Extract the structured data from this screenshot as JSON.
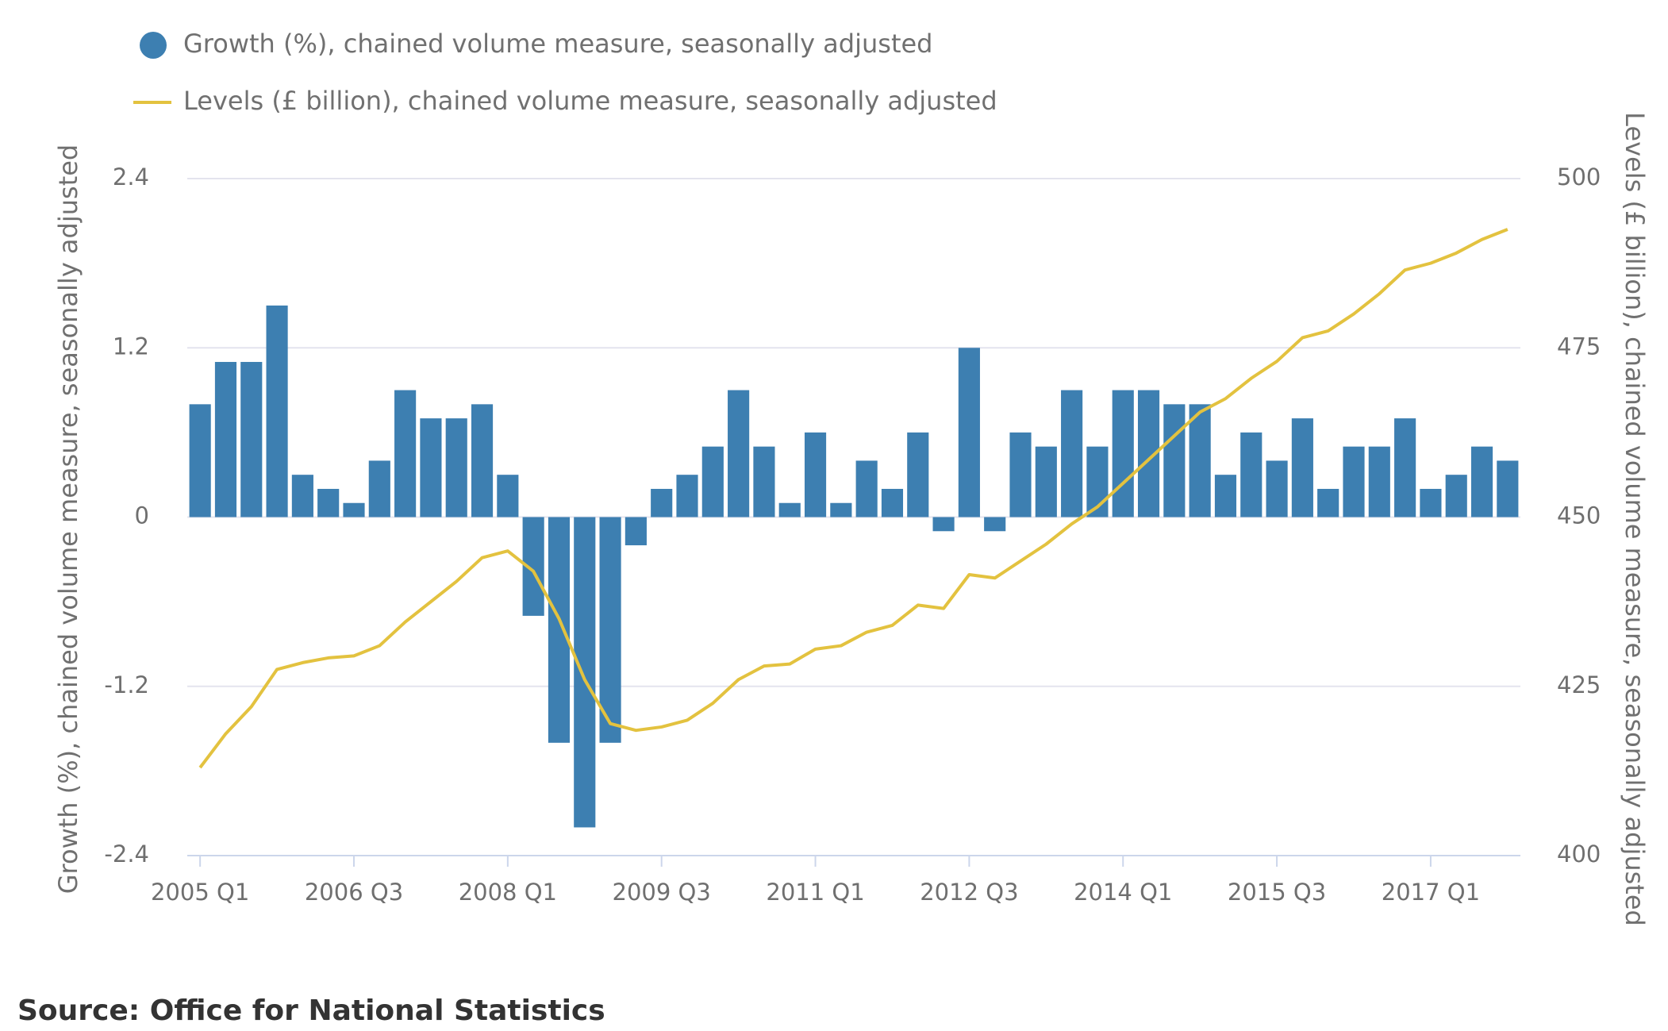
{
  "chart_data": {
    "type": "combo",
    "categories": [
      "2005 Q1",
      null,
      null,
      null,
      null,
      null,
      "2006 Q3",
      null,
      null,
      null,
      null,
      null,
      "2008 Q1",
      null,
      null,
      null,
      null,
      null,
      "2009 Q3",
      null,
      null,
      null,
      null,
      null,
      "2011 Q1",
      null,
      null,
      null,
      null,
      null,
      "2012 Q3",
      null,
      null,
      null,
      null,
      null,
      "2014 Q1",
      null,
      null,
      null,
      null,
      null,
      "2015 Q3",
      null,
      null,
      null,
      null,
      null,
      "2017 Q1",
      null,
      null,
      null
    ],
    "series": [
      {
        "name": "Growth (%), chained volume measure, seasonally adjusted",
        "type": "bar",
        "color": "#3d7fb1",
        "values": [
          0.8,
          1.1,
          1.1,
          1.5,
          0.3,
          0.2,
          0.1,
          0.4,
          0.9,
          0.7,
          0.7,
          0.8,
          0.3,
          -0.7,
          -1.6,
          -2.2,
          -1.6,
          -0.2,
          0.2,
          0.3,
          0.5,
          0.9,
          0.5,
          0.1,
          0.6,
          0.1,
          0.4,
          0.2,
          0.6,
          -0.1,
          1.2,
          -0.1,
          0.6,
          0.5,
          0.9,
          0.5,
          0.9,
          0.9,
          0.8,
          0.8,
          0.3,
          0.6,
          0.4,
          0.7,
          0.2,
          0.5,
          0.5,
          0.7,
          0.2,
          0.3,
          0.5,
          0.4
        ]
      },
      {
        "name": "Levels (£ billion), chained volume measure, seasonally adjusted",
        "type": "line",
        "color": "#e3c23f",
        "axis": "y2",
        "values": [
          413,
          418,
          422,
          427.5,
          428.5,
          429.2,
          429.5,
          431,
          434.5,
          437.5,
          440.5,
          444,
          445,
          442,
          435,
          426,
          419.5,
          418.5,
          419,
          420,
          422.5,
          426,
          428,
          428.3,
          430.5,
          431,
          433,
          434,
          437,
          436.5,
          441.5,
          441,
          443.5,
          446,
          449,
          451.5,
          455,
          458.5,
          462,
          465.5,
          467.5,
          470.5,
          473,
          476.5,
          477.5,
          480,
          483,
          486.5,
          487.5,
          489,
          491,
          492.5
        ]
      }
    ],
    "ylabel": "Growth (%), chained volume measure, seasonally adjusted",
    "y2label": "Levels (£ billion), chained volume measure, seasonally adjusted",
    "ylim": [
      -2.4,
      2.4
    ],
    "yticks": [
      -2.4,
      -1.2,
      0,
      1.2,
      2.4
    ],
    "y2lim": [
      400,
      500
    ],
    "y2ticks": [
      400,
      425,
      450,
      475,
      500
    ],
    "grid": true,
    "source": "Source: Office for National Statistics"
  }
}
